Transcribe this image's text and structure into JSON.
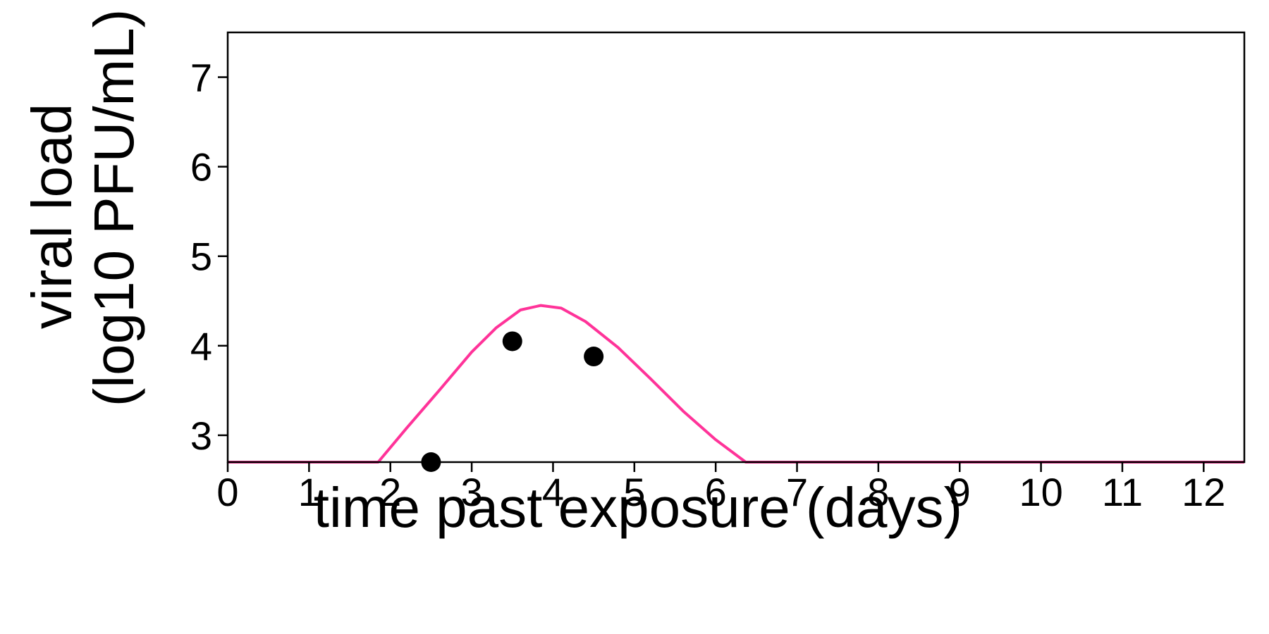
{
  "chart_data": {
    "type": "line",
    "xlabel": "time past exposure (days)",
    "ylabel_line1": "viral load",
    "ylabel_line2": "(log10 PFU/mL)",
    "xlim": [
      0,
      12.5
    ],
    "ylim": [
      2.7,
      7.5
    ],
    "xticks": [
      0,
      1,
      2,
      3,
      4,
      5,
      6,
      7,
      8,
      9,
      10,
      11,
      12
    ],
    "yticks": [
      3,
      4,
      5,
      6,
      7
    ],
    "grid": false,
    "colors": {
      "model": "#ff3399",
      "observed": "#000000",
      "axis": "#000000"
    },
    "series": [
      {
        "kind": "line",
        "x": [
          0,
          1.85,
          2.2,
          2.6,
          3.0,
          3.3,
          3.6,
          3.85,
          4.1,
          4.4,
          4.8,
          5.2,
          5.6,
          6.0,
          6.37,
          7,
          8,
          9,
          10,
          11,
          12,
          12.5
        ],
        "y": [
          2.7,
          2.7,
          3.08,
          3.5,
          3.93,
          4.2,
          4.4,
          4.45,
          4.42,
          4.27,
          3.98,
          3.63,
          3.27,
          2.95,
          2.7,
          2.7,
          2.7,
          2.7,
          2.7,
          2.7,
          2.7,
          2.7
        ]
      },
      {
        "kind": "scatter",
        "x": [
          2.5,
          3.5,
          4.5
        ],
        "y": [
          2.7,
          4.05,
          3.88
        ]
      }
    ]
  }
}
